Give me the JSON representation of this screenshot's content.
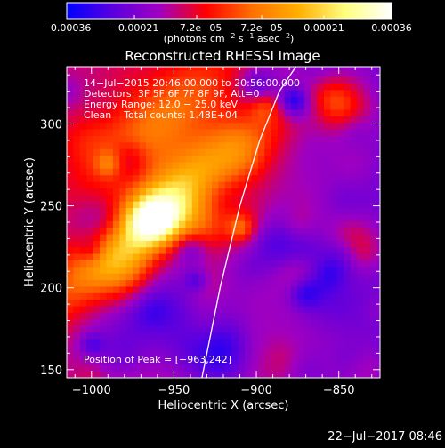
{
  "chart_data": {
    "type": "heatmap",
    "title": "Reconstructed RHESSI Image",
    "xlabel": "Heliocentric X (arcsec)",
    "ylabel": "Heliocentric Y (arcsec)",
    "xlim": [
      -1015,
      -825
    ],
    "ylim": [
      145,
      335
    ],
    "x_ticks": [
      -1000,
      -950,
      -900,
      -850
    ],
    "y_ticks": [
      150,
      200,
      250,
      300
    ],
    "x_tick_labels": [
      "−1000",
      "−950",
      "−900",
      "−850"
    ],
    "y_tick_labels": [
      "150",
      "200",
      "250",
      "300"
    ],
    "colorbar": {
      "range": [
        -0.00036,
        0.00036
      ],
      "ticks": [
        -0.00036,
        -0.00021,
        -7.2e-05,
        7.2e-05,
        0.00021,
        0.00036
      ],
      "tick_labels": [
        "−0.00036",
        "−0.00021",
        "−7.2e−05",
        "7.2e−05",
        "0.00021",
        "0.00036"
      ],
      "label_text": "(photons cm",
      "label_sup1": "−2",
      "label_mid": " s",
      "label_sup2": "−1",
      "label_mid2": " asec",
      "label_sup3": "−2",
      "label_end": ")",
      "colors": [
        "#0000ff",
        "#5a00e0",
        "#a000c0",
        "#ff0000",
        "#ff7000",
        "#ffb000",
        "#ffff80",
        "#ffffff"
      ]
    },
    "annotations": {
      "line1": "14−Jul−2015 20:46:00.000 to 20:56:00.000",
      "line2": "Detectors: 3F 5F 6F 7F 8F 9F, Att=0",
      "line3": "Energy Range: 12.0 − 25.0 keV",
      "line4": "Clean    Total counts: 1.48E+04",
      "peak": "Position of Peak = [−963,242]"
    },
    "peak": {
      "x": -963,
      "y": 242
    },
    "limb_curve": {
      "x": [
        -933,
        -922,
        -910,
        -898,
        -886,
        -876
      ],
      "y": [
        145,
        200,
        250,
        290,
        320,
        335
      ]
    },
    "timestamp": "22−Jul−2017 08:46"
  }
}
